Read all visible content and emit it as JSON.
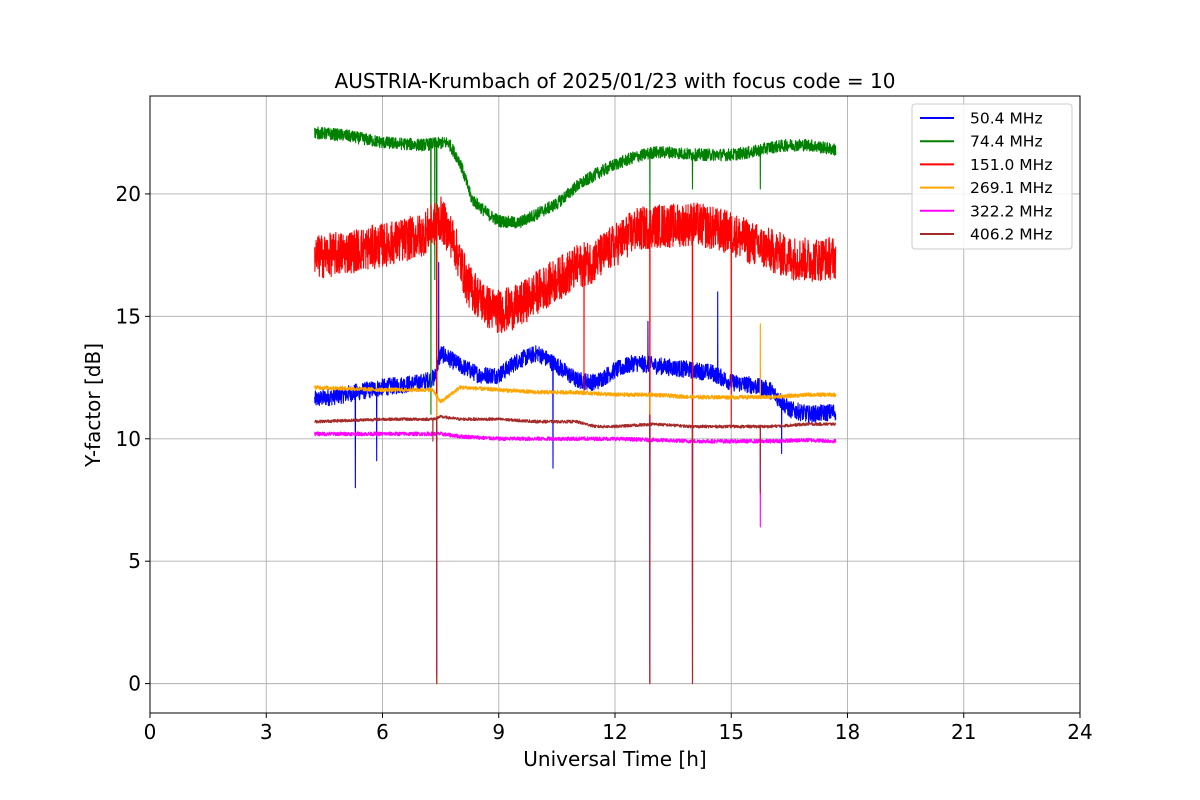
{
  "chart_data": {
    "type": "line",
    "title": "AUSTRIA-Krumbach of 2025/01/23 with focus code = 10",
    "xlabel": "Universal Time [h]",
    "ylabel": "Y-factor [dB]",
    "xlim": [
      0,
      24
    ],
    "ylim": [
      -1.2,
      24
    ],
    "xticks": [
      "0",
      "3",
      "6",
      "9",
      "12",
      "15",
      "18",
      "21",
      "24"
    ],
    "yticks": [
      "0",
      "5",
      "10",
      "15",
      "20"
    ],
    "grid": true,
    "legend_position": "top-right",
    "series": [
      {
        "name": " 50.4 MHz",
        "color": "#0000ff",
        "noise": 0.35,
        "points": [
          [
            4.25,
            11.6
          ],
          [
            5.0,
            11.8
          ],
          [
            6.0,
            12.1
          ],
          [
            7.0,
            12.3
          ],
          [
            7.35,
            12.5
          ],
          [
            7.5,
            13.5
          ],
          [
            8.0,
            13.0
          ],
          [
            8.5,
            12.6
          ],
          [
            9.0,
            12.6
          ],
          [
            9.5,
            13.2
          ],
          [
            10.0,
            13.5
          ],
          [
            10.5,
            13.0
          ],
          [
            11.0,
            12.4
          ],
          [
            11.5,
            12.3
          ],
          [
            12.0,
            12.8
          ],
          [
            12.5,
            13.1
          ],
          [
            13.0,
            13.0
          ],
          [
            13.5,
            12.9
          ],
          [
            14.0,
            12.8
          ],
          [
            14.5,
            12.7
          ],
          [
            15.0,
            12.3
          ],
          [
            15.5,
            12.2
          ],
          [
            16.0,
            12.0
          ],
          [
            16.5,
            11.2
          ],
          [
            17.0,
            11.0
          ],
          [
            17.7,
            11.1
          ]
        ],
        "spikes": [
          [
            5.3,
            8.0
          ],
          [
            5.85,
            9.1
          ],
          [
            7.4,
            10.5
          ],
          [
            7.45,
            17.2
          ],
          [
            10.4,
            8.8
          ],
          [
            12.85,
            14.8
          ],
          [
            12.9,
            0.0
          ],
          [
            14.65,
            16.0
          ],
          [
            16.3,
            9.4
          ]
        ]
      },
      {
        "name": " 74.4 MHz",
        "color": "#008000",
        "noise": 0.25,
        "points": [
          [
            4.25,
            22.5
          ],
          [
            5.0,
            22.4
          ],
          [
            6.0,
            22.1
          ],
          [
            7.0,
            22.0
          ],
          [
            7.7,
            22.1
          ],
          [
            8.0,
            21.3
          ],
          [
            8.3,
            19.8
          ],
          [
            8.7,
            19.2
          ],
          [
            9.0,
            18.9
          ],
          [
            9.5,
            18.8
          ],
          [
            10.0,
            19.2
          ],
          [
            10.5,
            19.6
          ],
          [
            11.0,
            20.3
          ],
          [
            11.5,
            20.8
          ],
          [
            12.0,
            21.2
          ],
          [
            12.5,
            21.5
          ],
          [
            13.0,
            21.7
          ],
          [
            13.5,
            21.7
          ],
          [
            14.0,
            21.6
          ],
          [
            14.5,
            21.6
          ],
          [
            15.0,
            21.6
          ],
          [
            15.5,
            21.7
          ],
          [
            16.0,
            21.9
          ],
          [
            16.5,
            22.0
          ],
          [
            17.0,
            22.0
          ],
          [
            17.7,
            21.8
          ]
        ],
        "spikes": [
          [
            7.25,
            11.0
          ],
          [
            7.35,
            16.5
          ],
          [
            7.4,
            12.0
          ],
          [
            12.9,
            19.2
          ],
          [
            14.0,
            20.2
          ],
          [
            15.75,
            20.2
          ]
        ]
      },
      {
        "name": "151.0 MHz",
        "color": "#ff0000",
        "noise": 0.9,
        "points": [
          [
            4.25,
            17.4
          ],
          [
            5.0,
            17.6
          ],
          [
            6.0,
            17.9
          ],
          [
            7.0,
            18.3
          ],
          [
            7.5,
            19.0
          ],
          [
            7.8,
            18.2
          ],
          [
            8.2,
            16.3
          ],
          [
            8.7,
            15.4
          ],
          [
            9.0,
            15.2
          ],
          [
            9.5,
            15.4
          ],
          [
            10.0,
            16.0
          ],
          [
            10.5,
            16.5
          ],
          [
            11.0,
            17.0
          ],
          [
            11.5,
            17.3
          ],
          [
            12.0,
            17.9
          ],
          [
            12.5,
            18.5
          ],
          [
            13.0,
            18.7
          ],
          [
            13.5,
            18.7
          ],
          [
            14.0,
            18.8
          ],
          [
            14.5,
            18.6
          ],
          [
            15.0,
            18.4
          ],
          [
            15.5,
            18.0
          ],
          [
            16.0,
            17.7
          ],
          [
            16.5,
            17.4
          ],
          [
            17.0,
            17.3
          ],
          [
            17.7,
            17.4
          ]
        ],
        "spikes": [
          [
            7.4,
            0.0
          ],
          [
            11.2,
            11.8
          ],
          [
            12.9,
            0.0
          ],
          [
            14.0,
            0.0
          ],
          [
            15.0,
            10.5
          ]
        ]
      },
      {
        "name": "269.1 MHz",
        "color": "#ffa500",
        "noise": 0.08,
        "points": [
          [
            4.25,
            12.1
          ],
          [
            6.0,
            12.0
          ],
          [
            7.3,
            12.0
          ],
          [
            7.5,
            11.5
          ],
          [
            8.0,
            12.1
          ],
          [
            9.0,
            12.0
          ],
          [
            10.0,
            11.9
          ],
          [
            11.0,
            11.9
          ],
          [
            12.0,
            11.8
          ],
          [
            13.0,
            11.8
          ],
          [
            14.0,
            11.7
          ],
          [
            15.0,
            11.7
          ],
          [
            16.0,
            11.7
          ],
          [
            17.0,
            11.8
          ],
          [
            17.7,
            11.8
          ]
        ],
        "spikes": [
          [
            7.4,
            0.0
          ],
          [
            12.9,
            11.0
          ],
          [
            15.75,
            14.7
          ]
        ]
      },
      {
        "name": "322.2 MHz",
        "color": "#ff00ff",
        "noise": 0.08,
        "points": [
          [
            4.25,
            10.2
          ],
          [
            6.0,
            10.2
          ],
          [
            7.3,
            10.2
          ],
          [
            7.5,
            10.2
          ],
          [
            8.0,
            10.1
          ],
          [
            9.0,
            10.0
          ],
          [
            10.0,
            10.0
          ],
          [
            11.0,
            10.0
          ],
          [
            12.0,
            10.0
          ],
          [
            13.0,
            9.95
          ],
          [
            14.0,
            9.9
          ],
          [
            15.0,
            9.9
          ],
          [
            16.0,
            9.9
          ],
          [
            17.0,
            9.95
          ],
          [
            17.7,
            9.9
          ]
        ],
        "spikes": [
          [
            7.4,
            0.3
          ],
          [
            12.9,
            0.8
          ],
          [
            14.0,
            0.0
          ],
          [
            15.75,
            6.4
          ]
        ]
      },
      {
        "name": "406.2 MHz",
        "color": "#a52a2a",
        "noise": 0.06,
        "points": [
          [
            4.25,
            10.7
          ],
          [
            6.0,
            10.8
          ],
          [
            7.3,
            10.8
          ],
          [
            7.5,
            10.9
          ],
          [
            8.0,
            10.8
          ],
          [
            9.0,
            10.8
          ],
          [
            10.0,
            10.7
          ],
          [
            11.0,
            10.7
          ],
          [
            11.5,
            10.5
          ],
          [
            12.0,
            10.5
          ],
          [
            13.0,
            10.6
          ],
          [
            14.0,
            10.5
          ],
          [
            15.0,
            10.5
          ],
          [
            16.0,
            10.5
          ],
          [
            17.0,
            10.6
          ],
          [
            17.7,
            10.6
          ]
        ],
        "spikes": [
          [
            7.3,
            9.9
          ],
          [
            7.4,
            0.0
          ],
          [
            12.9,
            0.0
          ],
          [
            14.0,
            0.0
          ],
          [
            15.75,
            7.8
          ]
        ]
      }
    ]
  }
}
